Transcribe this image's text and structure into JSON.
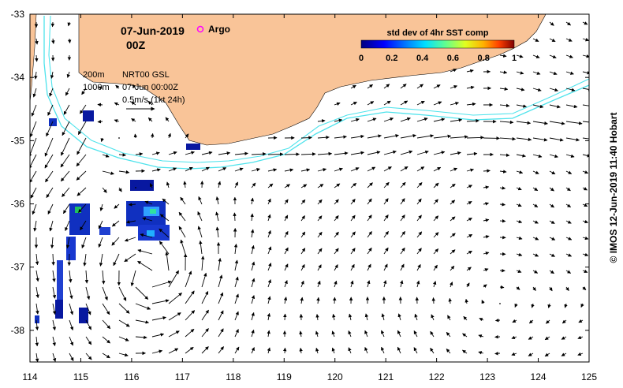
{
  "header": {
    "date": "07-Jun-2019",
    "time": "00Z",
    "argo_label": "Argo"
  },
  "legend": {
    "line_200": "200m",
    "line_1000": "1000m",
    "product": "NRT00 GSL",
    "datetime": "07-Jun 00:00Z",
    "scale": "0.5m/s (1kt 24h)"
  },
  "colorbar": {
    "title": "std dev of 4hr SST comp",
    "ticks": [
      "0",
      "0.2",
      "0.4",
      "0.6",
      "0.8",
      "1"
    ],
    "range": [
      0,
      1
    ]
  },
  "credit": "© IMOS 12-Jun-2019 11:40 Hobart",
  "axes": {
    "x_ticks": [
      "114",
      "115",
      "116",
      "117",
      "118",
      "119",
      "120",
      "121",
      "122",
      "123",
      "124",
      "125"
    ],
    "y_ticks": [
      "-33",
      "-34",
      "-35",
      "-36",
      "-37",
      "-38"
    ],
    "lon_range": [
      114,
      125
    ],
    "lat_range": [
      -38.5,
      -33
    ]
  },
  "colors": {
    "land": "#f9c498",
    "isobath": "#4fe3ec",
    "argo": "#ff00ff",
    "ocean": "#ffffff"
  }
}
